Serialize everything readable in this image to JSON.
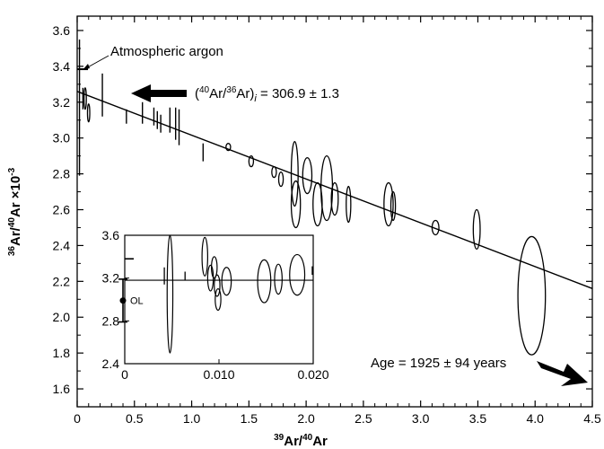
{
  "chart_data": {
    "type": "scatter",
    "xlabel": "39Ar/40Ar",
    "ylabel": "36Ar/40Ar ×10-3",
    "xlim": [
      0,
      4.5
    ],
    "ylim": [
      1.5,
      3.68
    ],
    "x_ticks": [
      "0",
      "0.5",
      "1.0",
      "1.5",
      "2.0",
      "2.5",
      "3.0",
      "3.5",
      "4.0",
      "4.5"
    ],
    "y_ticks": [
      "1.6",
      "1.8",
      "2.0",
      "2.2",
      "2.4",
      "2.6",
      "2.8",
      "3.0",
      "3.2",
      "3.4",
      "3.6"
    ],
    "fit_line": {
      "x": [
        0,
        4.5
      ],
      "y": [
        3.26,
        2.16
      ]
    },
    "atmospheric_argon_value": 3.384,
    "points": [
      {
        "x": 0.02,
        "y": 3.17,
        "dx": 0,
        "dy": 0.38
      },
      {
        "x": 0.05,
        "y": 3.22,
        "dx": 0,
        "dy": 0.06
      },
      {
        "x": 0.07,
        "y": 3.22,
        "dx": 0.01,
        "dy": 0.06
      },
      {
        "x": 0.1,
        "y": 3.14,
        "dx": 0.01,
        "dy": 0.05
      },
      {
        "x": 0.22,
        "y": 3.24,
        "dx": 0,
        "dy": 0.12
      },
      {
        "x": 0.43,
        "y": 3.12,
        "dx": 0,
        "dy": 0.04
      },
      {
        "x": 0.57,
        "y": 3.14,
        "dx": 0,
        "dy": 0.06
      },
      {
        "x": 0.67,
        "y": 3.12,
        "dx": 0,
        "dy": 0.05
      },
      {
        "x": 0.7,
        "y": 3.1,
        "dx": 0,
        "dy": 0.05
      },
      {
        "x": 0.73,
        "y": 3.08,
        "dx": 0,
        "dy": 0.05
      },
      {
        "x": 0.81,
        "y": 3.1,
        "dx": 0,
        "dy": 0.07
      },
      {
        "x": 0.86,
        "y": 3.08,
        "dx": 0,
        "dy": 0.09
      },
      {
        "x": 0.89,
        "y": 3.06,
        "dx": 0,
        "dy": 0.1
      },
      {
        "x": 1.1,
        "y": 2.92,
        "dx": 0,
        "dy": 0.05
      },
      {
        "x": 1.32,
        "y": 2.95,
        "dx": 0.02,
        "dy": 0.02
      },
      {
        "x": 1.52,
        "y": 2.87,
        "dx": 0.02,
        "dy": 0.03
      },
      {
        "x": 1.72,
        "y": 2.81,
        "dx": 0.02,
        "dy": 0.03
      },
      {
        "x": 1.78,
        "y": 2.77,
        "dx": 0.02,
        "dy": 0.04
      },
      {
        "x": 1.9,
        "y": 2.8,
        "dx": 0.03,
        "dy": 0.18
      },
      {
        "x": 1.91,
        "y": 2.63,
        "dx": 0.04,
        "dy": 0.13
      },
      {
        "x": 2.01,
        "y": 2.79,
        "dx": 0.04,
        "dy": 0.1
      },
      {
        "x": 2.1,
        "y": 2.63,
        "dx": 0.04,
        "dy": 0.12
      },
      {
        "x": 2.18,
        "y": 2.72,
        "dx": 0.05,
        "dy": 0.18
      },
      {
        "x": 2.25,
        "y": 2.66,
        "dx": 0.03,
        "dy": 0.09
      },
      {
        "x": 2.37,
        "y": 2.63,
        "dx": 0.02,
        "dy": 0.1
      },
      {
        "x": 2.72,
        "y": 2.63,
        "dx": 0.04,
        "dy": 0.12
      },
      {
        "x": 2.76,
        "y": 2.62,
        "dx": 0.02,
        "dy": 0.08
      },
      {
        "x": 3.13,
        "y": 2.5,
        "dx": 0.03,
        "dy": 0.04
      },
      {
        "x": 3.49,
        "y": 2.49,
        "dx": 0.03,
        "dy": 0.11
      },
      {
        "x": 3.97,
        "y": 2.12,
        "dx": 0.12,
        "dy": 0.33
      }
    ],
    "inset": {
      "xlim": [
        0,
        0.02
      ],
      "ylim": [
        2.4,
        3.6
      ],
      "x_ticks": [
        "0",
        "0.010",
        "0.020"
      ],
      "y_ticks": [
        "2.4",
        "2.8",
        "3.2",
        "3.6"
      ],
      "fit_y": 3.18,
      "points": [
        {
          "x": 0.0042,
          "y": 3.22,
          "dx": 0,
          "dy": 0.08
        },
        {
          "x": 0.0048,
          "y": 3.05,
          "dx": 0.0003,
          "dy": 0.55
        },
        {
          "x": 0.0064,
          "y": 3.22,
          "dx": 0,
          "dy": 0.04
        },
        {
          "x": 0.0085,
          "y": 3.4,
          "dx": 0.0003,
          "dy": 0.18
        },
        {
          "x": 0.0091,
          "y": 3.2,
          "dx": 0.0003,
          "dy": 0.12
        },
        {
          "x": 0.0095,
          "y": 3.3,
          "dx": 0.0003,
          "dy": 0.1
        },
        {
          "x": 0.0098,
          "y": 3.13,
          "dx": 0.0003,
          "dy": 0.1
        },
        {
          "x": 0.0099,
          "y": 3.0,
          "dx": 0.0003,
          "dy": 0.1
        },
        {
          "x": 0.0108,
          "y": 3.17,
          "dx": 0.0005,
          "dy": 0.13
        },
        {
          "x": 0.0148,
          "y": 3.17,
          "dx": 0.0007,
          "dy": 0.2
        },
        {
          "x": 0.0163,
          "y": 3.19,
          "dx": 0.0004,
          "dy": 0.14
        },
        {
          "x": 0.0183,
          "y": 3.23,
          "dx": 0.0008,
          "dy": 0.19
        },
        {
          "x": 0.0199,
          "y": 3.27,
          "dx": 0,
          "dy": 0.04
        }
      ],
      "ol_label": "OL",
      "ol_point": {
        "y": 2.99,
        "dy": 0.2
      }
    },
    "annotations": {
      "atmospheric": "Atmospheric argon",
      "ratio_open": "(",
      "ratio_sup1": "40",
      "ratio_mid": "Ar/",
      "ratio_sup2": "36",
      "ratio_close": "Ar)",
      "ratio_sub": "i",
      "ratio_value": " = 306.9 ± 1.3",
      "age": "Age = 1925 ± 94 years"
    },
    "axis_label_parts": {
      "x_sup": "39",
      "x_a": "Ar/",
      "x_sup2": "40",
      "x_b": "Ar",
      "y_sup": "36",
      "y_a": "Ar/",
      "y_sup2": "40",
      "y_b": "Ar ×10",
      "y_exp": "-3"
    }
  }
}
